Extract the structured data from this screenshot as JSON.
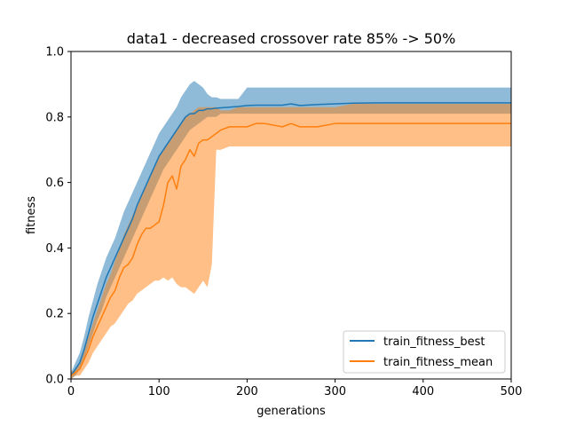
{
  "chart_data": {
    "type": "line",
    "title": "data1 - decreased crossover rate 85% -> 50%",
    "xlabel": "generations",
    "ylabel": "fitness",
    "xlim": [
      0,
      500
    ],
    "ylim": [
      0,
      1.0
    ],
    "xticks": [
      "0",
      "100",
      "200",
      "300",
      "400",
      "500"
    ],
    "yticks": [
      "0.0",
      "0.2",
      "0.4",
      "0.6",
      "0.8",
      "1.0"
    ],
    "grid": false,
    "legend_position": "bottom-right",
    "series": [
      {
        "name": "train_fitness_best",
        "color": "#1f77b4",
        "x": [
          0,
          5,
          10,
          15,
          20,
          25,
          30,
          35,
          40,
          45,
          50,
          55,
          60,
          65,
          70,
          75,
          80,
          85,
          90,
          95,
          100,
          105,
          110,
          115,
          120,
          125,
          130,
          135,
          140,
          145,
          150,
          155,
          160,
          165,
          170,
          180,
          190,
          200,
          210,
          220,
          240,
          250,
          260,
          280,
          300,
          320,
          350,
          400,
          450,
          500
        ],
        "y": [
          0.01,
          0.03,
          0.05,
          0.09,
          0.14,
          0.19,
          0.23,
          0.27,
          0.31,
          0.34,
          0.37,
          0.4,
          0.43,
          0.46,
          0.49,
          0.53,
          0.56,
          0.59,
          0.62,
          0.65,
          0.68,
          0.7,
          0.72,
          0.74,
          0.76,
          0.78,
          0.8,
          0.81,
          0.81,
          0.82,
          0.82,
          0.825,
          0.825,
          0.827,
          0.828,
          0.83,
          0.832,
          0.835,
          0.836,
          0.836,
          0.836,
          0.84,
          0.835,
          0.838,
          0.84,
          0.842,
          0.843,
          0.843,
          0.843,
          0.843
        ],
        "upper": [
          0.02,
          0.05,
          0.08,
          0.13,
          0.19,
          0.24,
          0.29,
          0.33,
          0.37,
          0.4,
          0.43,
          0.47,
          0.51,
          0.54,
          0.57,
          0.6,
          0.63,
          0.66,
          0.69,
          0.72,
          0.75,
          0.77,
          0.79,
          0.81,
          0.83,
          0.86,
          0.88,
          0.9,
          0.91,
          0.9,
          0.89,
          0.87,
          0.86,
          0.86,
          0.855,
          0.855,
          0.855,
          0.89,
          0.89,
          0.89,
          0.89,
          0.89,
          0.89,
          0.89,
          0.89,
          0.89,
          0.89,
          0.89,
          0.89,
          0.89
        ],
        "lower": [
          0.0,
          0.01,
          0.03,
          0.06,
          0.1,
          0.14,
          0.18,
          0.21,
          0.25,
          0.28,
          0.31,
          0.34,
          0.37,
          0.4,
          0.43,
          0.46,
          0.49,
          0.52,
          0.55,
          0.58,
          0.61,
          0.64,
          0.66,
          0.68,
          0.7,
          0.72,
          0.74,
          0.76,
          0.77,
          0.78,
          0.79,
          0.8,
          0.8,
          0.8,
          0.81,
          0.81,
          0.81,
          0.81,
          0.81,
          0.81,
          0.81,
          0.81,
          0.81,
          0.81,
          0.81,
          0.81,
          0.81,
          0.81,
          0.81,
          0.81
        ]
      },
      {
        "name": "train_fitness_mean",
        "color": "#ff7f0e",
        "x": [
          0,
          5,
          10,
          15,
          20,
          25,
          30,
          35,
          40,
          45,
          50,
          55,
          60,
          65,
          70,
          75,
          80,
          85,
          90,
          95,
          100,
          105,
          110,
          115,
          120,
          125,
          130,
          135,
          140,
          145,
          150,
          155,
          160,
          165,
          170,
          180,
          190,
          200,
          210,
          220,
          240,
          250,
          260,
          280,
          300,
          320,
          350,
          400,
          450,
          500
        ],
        "y": [
          0.01,
          0.02,
          0.03,
          0.06,
          0.09,
          0.13,
          0.16,
          0.19,
          0.22,
          0.25,
          0.27,
          0.31,
          0.34,
          0.35,
          0.37,
          0.41,
          0.44,
          0.46,
          0.46,
          0.47,
          0.48,
          0.53,
          0.6,
          0.62,
          0.58,
          0.65,
          0.67,
          0.7,
          0.68,
          0.72,
          0.73,
          0.73,
          0.74,
          0.75,
          0.76,
          0.77,
          0.77,
          0.77,
          0.78,
          0.78,
          0.77,
          0.78,
          0.77,
          0.77,
          0.78,
          0.78,
          0.78,
          0.78,
          0.78,
          0.78
        ],
        "upper": [
          0.02,
          0.03,
          0.05,
          0.09,
          0.13,
          0.17,
          0.21,
          0.25,
          0.29,
          0.32,
          0.36,
          0.4,
          0.44,
          0.47,
          0.5,
          0.53,
          0.56,
          0.59,
          0.62,
          0.65,
          0.68,
          0.7,
          0.72,
          0.74,
          0.76,
          0.78,
          0.8,
          0.81,
          0.82,
          0.83,
          0.83,
          0.83,
          0.83,
          0.83,
          0.82,
          0.82,
          0.83,
          0.83,
          0.83,
          0.83,
          0.83,
          0.83,
          0.83,
          0.83,
          0.83,
          0.84,
          0.84,
          0.84,
          0.84,
          0.84
        ],
        "lower": [
          0.0,
          0.01,
          0.01,
          0.03,
          0.05,
          0.08,
          0.1,
          0.12,
          0.14,
          0.16,
          0.17,
          0.19,
          0.21,
          0.23,
          0.24,
          0.26,
          0.27,
          0.28,
          0.29,
          0.3,
          0.3,
          0.31,
          0.3,
          0.31,
          0.29,
          0.28,
          0.28,
          0.27,
          0.26,
          0.28,
          0.3,
          0.28,
          0.35,
          0.7,
          0.7,
          0.71,
          0.71,
          0.71,
          0.71,
          0.71,
          0.71,
          0.71,
          0.71,
          0.71,
          0.71,
          0.71,
          0.71,
          0.71,
          0.71,
          0.71
        ]
      }
    ]
  }
}
